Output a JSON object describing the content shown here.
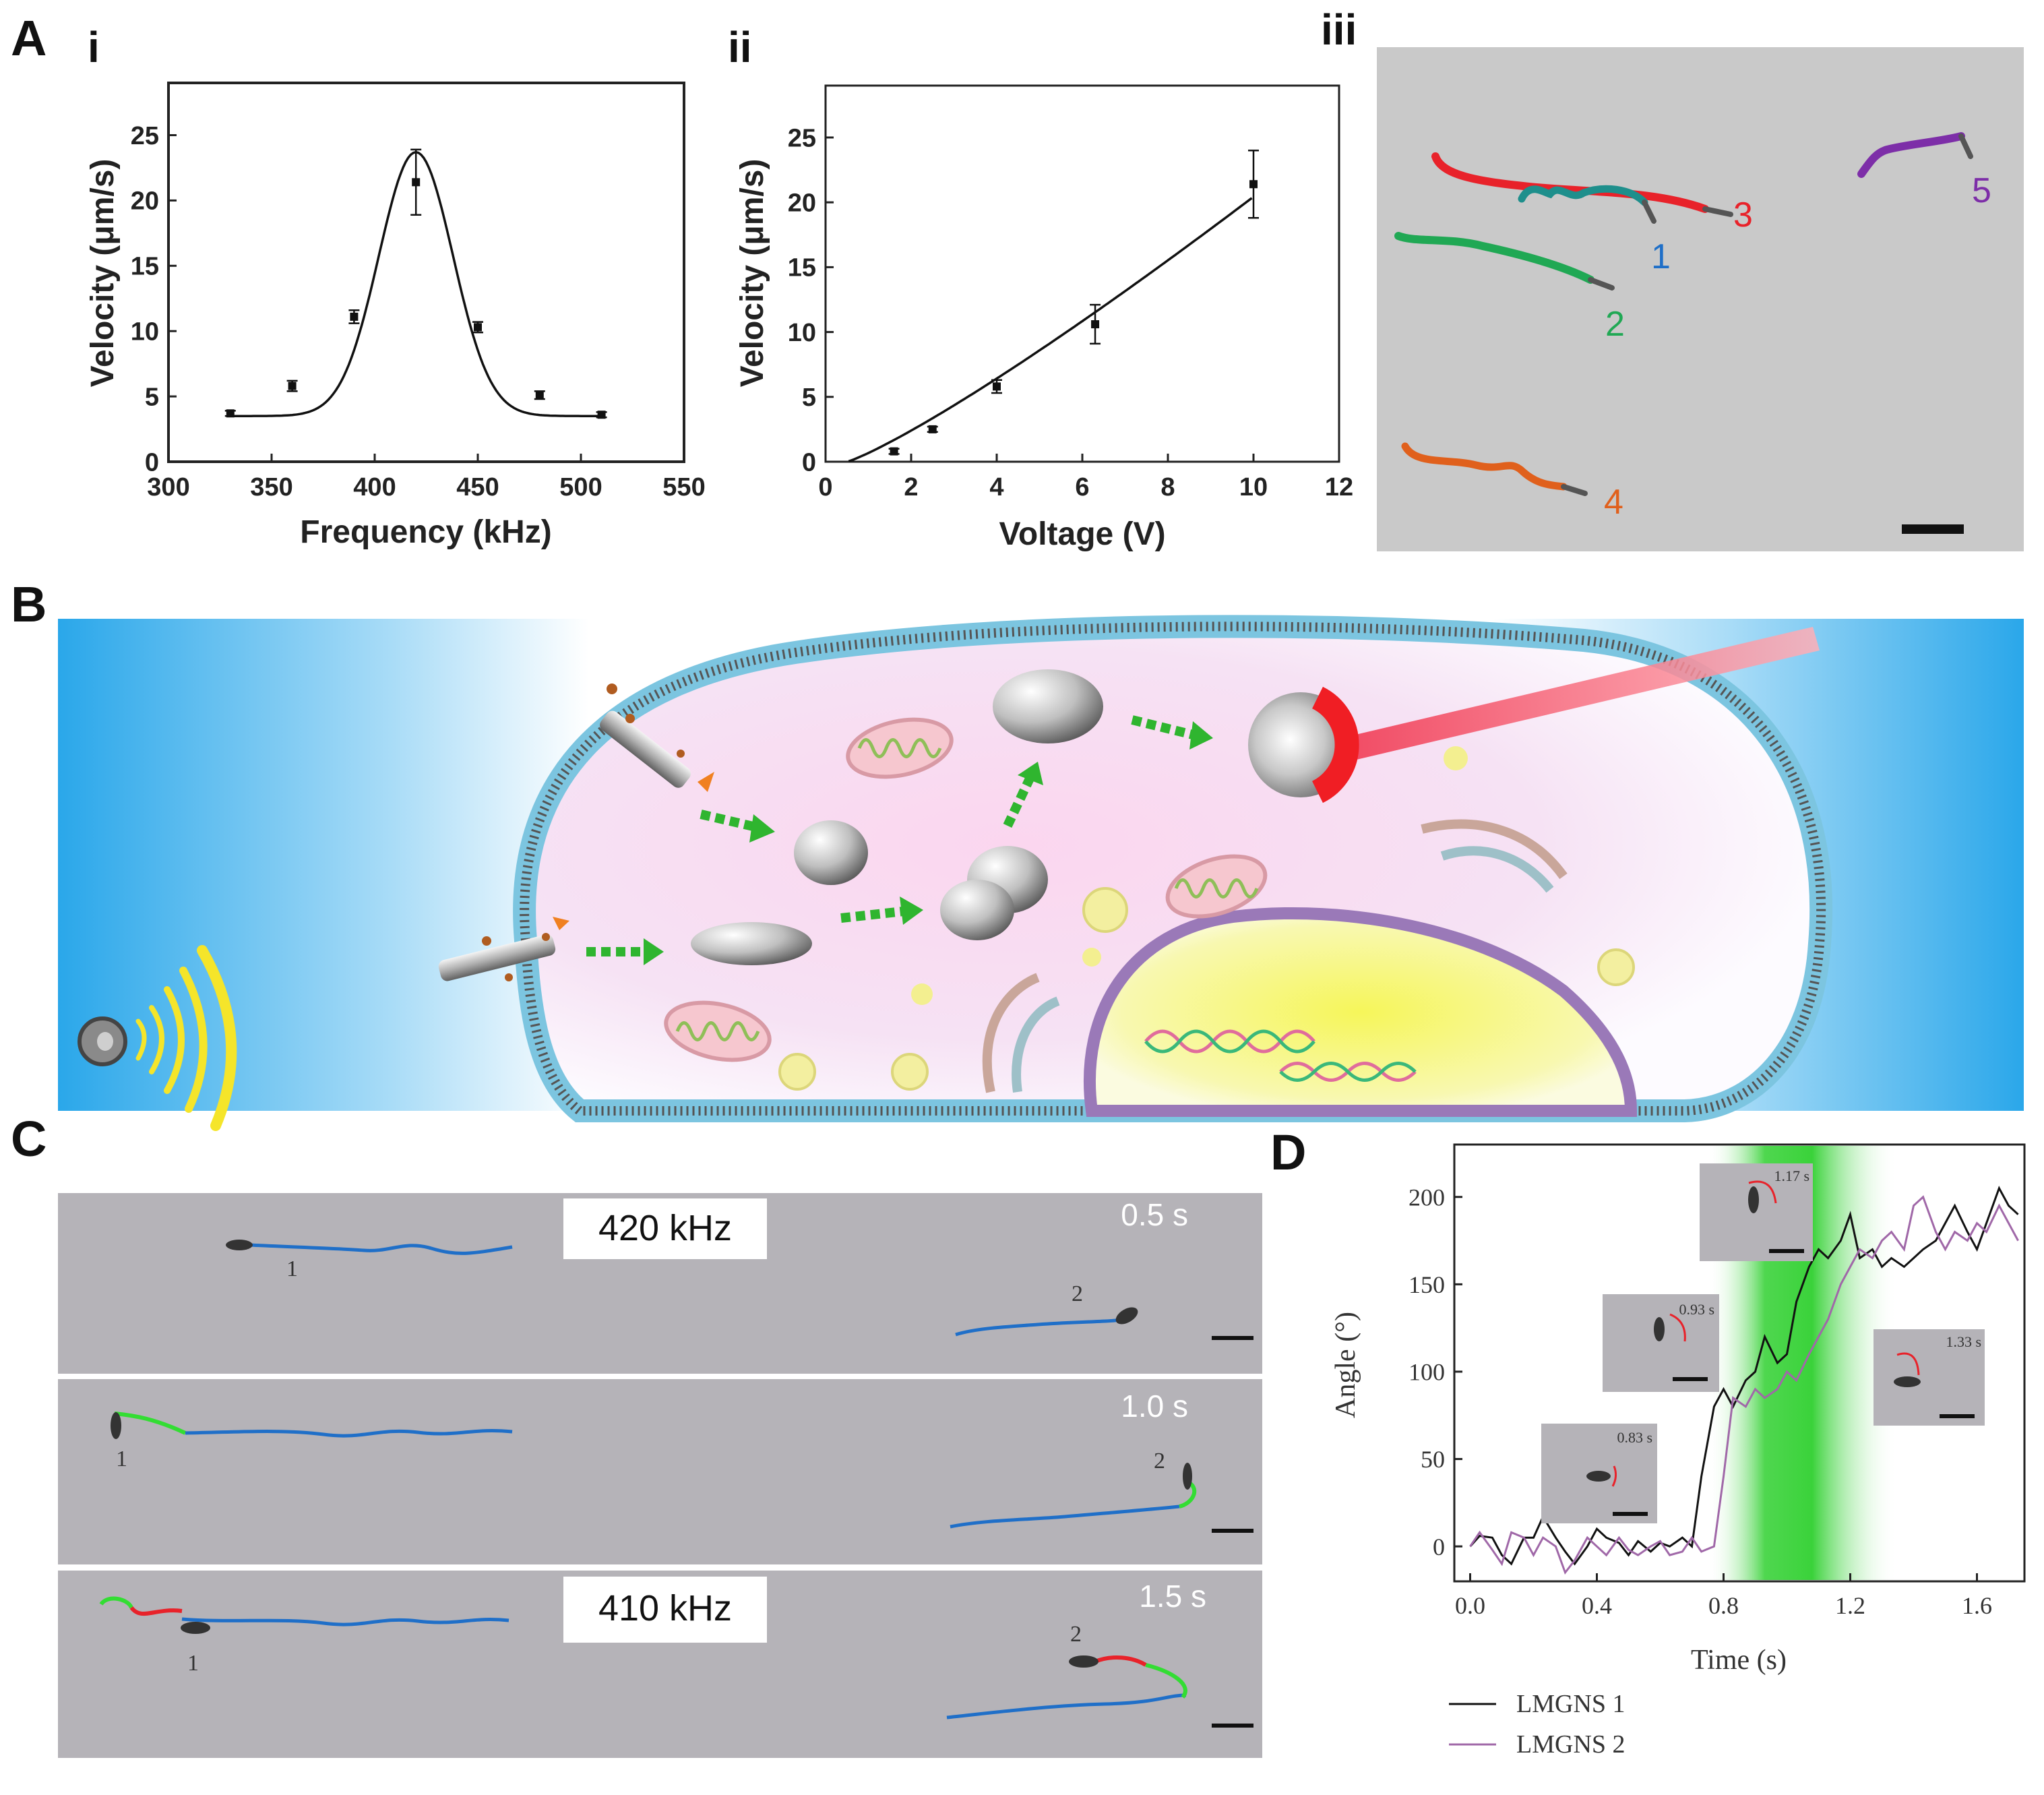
{
  "panel_labels": {
    "A": "A",
    "B": "B",
    "C": "C",
    "D": "D",
    "i": "i",
    "ii": "ii",
    "iii": "iii"
  },
  "colors": {
    "track_red": "#e8222a",
    "track_teal": "#1e8f8c",
    "track_green": "#20a854",
    "track_orange": "#e0601c",
    "track_purple": "#7d2ea8",
    "blue_track": "#1f6fc8",
    "green_track": "#33dd33",
    "black": "#111111",
    "purple_line": "#a068a8"
  },
  "chart_data": [
    {
      "id": "A-i",
      "type": "scatter",
      "xlabel": "Frequency (kHz)",
      "ylabel": "Velocity (μm/s)",
      "xlim": [
        300,
        550
      ],
      "ylim": [
        0,
        29
      ],
      "xticks": [
        300,
        350,
        400,
        450,
        500,
        550
      ],
      "yticks": [
        0,
        5,
        10,
        15,
        20,
        25
      ],
      "points": [
        {
          "x": 330,
          "y": 3.7,
          "err": 0.2
        },
        {
          "x": 360,
          "y": 5.8,
          "err": 0.4
        },
        {
          "x": 390,
          "y": 11.1,
          "err": 0.5
        },
        {
          "x": 420,
          "y": 21.4,
          "err": 2.5
        },
        {
          "x": 450,
          "y": 10.3,
          "err": 0.4
        },
        {
          "x": 480,
          "y": 5.1,
          "err": 0.3
        },
        {
          "x": 510,
          "y": 3.6,
          "err": 0.2
        }
      ],
      "fit": {
        "type": "gaussian",
        "baseline": 3.5,
        "amplitude": 20.2,
        "center": 420,
        "sigma": 18
      }
    },
    {
      "id": "A-ii",
      "type": "scatter",
      "xlabel": "Voltage (V)",
      "ylabel": "Velocity (μm/s)",
      "xlim": [
        0,
        12
      ],
      "ylim": [
        0,
        29
      ],
      "xticks": [
        0,
        2,
        4,
        6,
        8,
        10,
        12
      ],
      "yticks": [
        0,
        5,
        10,
        15,
        20,
        25
      ],
      "points": [
        {
          "x": 1.6,
          "y": 0.8,
          "err": 0.2
        },
        {
          "x": 2.5,
          "y": 2.5,
          "err": 0.2
        },
        {
          "x": 4.0,
          "y": 5.8,
          "err": 0.5
        },
        {
          "x": 6.3,
          "y": 10.6,
          "err": 1.5
        },
        {
          "x": 10.0,
          "y": 21.4,
          "err": 2.6
        }
      ],
      "fit": {
        "type": "power",
        "a": 1.5,
        "b": 1.16,
        "x0": 0.5
      }
    },
    {
      "id": "D",
      "type": "line",
      "xlabel": "Time (s)",
      "ylabel": "Angle (°)",
      "xlim": [
        -0.05,
        1.75
      ],
      "ylim": [
        -20,
        230
      ],
      "xticks": [
        0.0,
        0.4,
        0.8,
        1.2,
        1.6
      ],
      "xtick_labels": [
        "0.0",
        "0.4",
        "0.8",
        "1.2",
        "1.6"
      ],
      "yticks": [
        0,
        50,
        100,
        150,
        200
      ],
      "highlight": {
        "from": 0.75,
        "to": 1.35
      },
      "series": [
        {
          "name": "LMGNS 1",
          "x": [
            0.0,
            0.03,
            0.07,
            0.1,
            0.13,
            0.17,
            0.2,
            0.23,
            0.27,
            0.3,
            0.33,
            0.37,
            0.4,
            0.43,
            0.47,
            0.5,
            0.53,
            0.57,
            0.6,
            0.63,
            0.67,
            0.7,
            0.73,
            0.77,
            0.8,
            0.83,
            0.87,
            0.9,
            0.93,
            0.97,
            1.0,
            1.03,
            1.07,
            1.1,
            1.13,
            1.17,
            1.2,
            1.23,
            1.27,
            1.3,
            1.33,
            1.37,
            1.4,
            1.43,
            1.47,
            1.5,
            1.53,
            1.57,
            1.6,
            1.63,
            1.67,
            1.7,
            1.73
          ],
          "y": [
            0,
            6,
            5,
            -5,
            -10,
            5,
            5,
            17,
            5,
            -3,
            -10,
            0,
            10,
            5,
            2,
            -5,
            3,
            -3,
            2,
            0,
            5,
            0,
            40,
            80,
            90,
            80,
            95,
            100,
            120,
            105,
            110,
            140,
            160,
            170,
            165,
            175,
            190,
            165,
            170,
            160,
            165,
            160,
            165,
            170,
            175,
            185,
            195,
            180,
            170,
            185,
            205,
            195,
            190
          ]
        },
        {
          "name": "LMGNS 2",
          "x": [
            0.0,
            0.03,
            0.07,
            0.1,
            0.13,
            0.17,
            0.2,
            0.23,
            0.27,
            0.3,
            0.33,
            0.37,
            0.4,
            0.43,
            0.47,
            0.5,
            0.53,
            0.57,
            0.6,
            0.63,
            0.67,
            0.7,
            0.73,
            0.77,
            0.8,
            0.83,
            0.87,
            0.9,
            0.93,
            0.97,
            1.0,
            1.03,
            1.07,
            1.1,
            1.13,
            1.17,
            1.2,
            1.23,
            1.27,
            1.3,
            1.33,
            1.37,
            1.4,
            1.43,
            1.47,
            1.5,
            1.53,
            1.57,
            1.6,
            1.63,
            1.67,
            1.7,
            1.73
          ],
          "y": [
            0,
            8,
            -2,
            -10,
            8,
            5,
            -5,
            5,
            0,
            -15,
            -8,
            5,
            0,
            -5,
            5,
            -2,
            -5,
            0,
            3,
            -5,
            -3,
            5,
            -3,
            0,
            40,
            85,
            80,
            90,
            85,
            90,
            100,
            95,
            110,
            120,
            130,
            150,
            160,
            170,
            165,
            175,
            180,
            170,
            195,
            200,
            180,
            170,
            180,
            175,
            185,
            180,
            195,
            185,
            175
          ]
        }
      ]
    }
  ],
  "panel_A_iii": {
    "labels": [
      "1",
      "2",
      "3",
      "4",
      "5"
    ]
  },
  "panel_C": {
    "freq_top": "420 kHz",
    "freq_bottom": "410 kHz",
    "times": [
      "0.5 s",
      "1.0 s",
      "1.5 s"
    ],
    "particle_labels": [
      "1",
      "2"
    ]
  },
  "panel_D": {
    "insets": [
      "0.83 s",
      "0.93 s",
      "1.17 s",
      "1.33 s"
    ],
    "legend": [
      "LMGNS 1",
      "LMGNS 2"
    ]
  }
}
